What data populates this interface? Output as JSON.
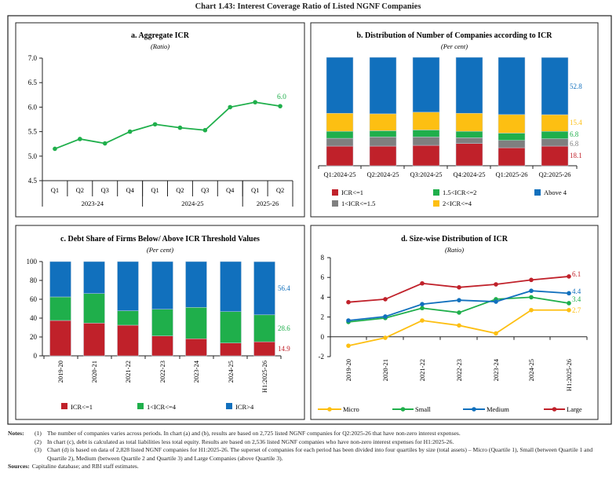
{
  "title": "Chart 1.43: Interest Coverage Ratio of Listed NGNF Companies",
  "colors": {
    "red": "#c0212a",
    "gray": "#7f7f7f",
    "green": "#1faf4b",
    "yellow": "#fdbf12",
    "blue": "#1170bd"
  },
  "chart_data": [
    {
      "id": "a",
      "type": "line",
      "title": "a. Aggregate ICR",
      "subtitle": "(Ratio)",
      "categories": [
        "Q1",
        "Q2",
        "Q3",
        "Q4",
        "Q1",
        "Q2",
        "Q3",
        "Q4",
        "Q1",
        "Q2"
      ],
      "groups": [
        {
          "label": "2023-24",
          "span": 4
        },
        {
          "label": "2024-25",
          "span": 4
        },
        {
          "label": "2025-26",
          "span": 2
        }
      ],
      "yticks": [
        "4.5",
        "5.0",
        "5.5",
        "6.0",
        "6.5",
        "7.0"
      ],
      "ylim": [
        4.5,
        7.0
      ],
      "series": [
        {
          "values": [
            5.15,
            5.35,
            5.26,
            5.5,
            5.65,
            5.58,
            5.53,
            6.0,
            6.1,
            6.02
          ],
          "color": "#1faf4b"
        }
      ],
      "end_label": "6.0"
    },
    {
      "id": "b",
      "type": "bar",
      "stacked": true,
      "title": "b. Distribution of Number of Companies according to ICR",
      "subtitle": "(Per cent)",
      "categories": [
        "Q1:2024-25",
        "Q2:2024-25",
        "Q3:2024-25",
        "Q4:2024-25",
        "Q1:2025-26",
        "Q2:2025-26"
      ],
      "series": [
        {
          "name": "ICR<=1",
          "color": "#c0212a",
          "values": [
            18.1,
            18.1,
            18.8,
            20.5,
            16.6,
            18.1
          ],
          "end_label": "18.1"
        },
        {
          "name": "1<ICR<=1.5",
          "color": "#7f7f7f",
          "values": [
            7.2,
            8.4,
            7.7,
            5.3,
            6.8,
            6.8
          ],
          "end_label": "6.8"
        },
        {
          "name": "1.5<ICR<=2",
          "color": "#1faf4b",
          "values": [
            6.5,
            5.8,
            6.5,
            6.0,
            6.7,
            6.8
          ],
          "end_label": "6.8"
        },
        {
          "name": "2<ICR<=4",
          "color": "#fdbf12",
          "values": [
            16.6,
            15.6,
            16.4,
            16.6,
            17.1,
            15.4
          ],
          "end_label": "15.4"
        },
        {
          "name": "Above 4",
          "color": "#1170bd",
          "values": [
            51.6,
            52.1,
            50.6,
            51.6,
            52.8,
            52.8
          ],
          "end_label": "52.8"
        }
      ],
      "legend_order": [
        0,
        2,
        4,
        1,
        3
      ],
      "ylim": [
        0,
        100
      ]
    },
    {
      "id": "c",
      "type": "bar",
      "stacked": true,
      "title": "c. Debt Share of Firms Below/ Above ICR Threshold Values",
      "subtitle": "(Per cent)",
      "categories": [
        "2019-20",
        "2020-21",
        "2021-22",
        "2022-23",
        "2023-24",
        "2024-25",
        "H1:2025-26"
      ],
      "yticks": [
        "0",
        "20",
        "40",
        "60",
        "80",
        "100"
      ],
      "ylim": [
        0,
        100
      ],
      "series": [
        {
          "name": "ICR<=1",
          "color": "#c0212a",
          "values": [
            37.5,
            34.7,
            32.5,
            21.1,
            18.1,
            13.6,
            14.9
          ],
          "end_label": "14.9"
        },
        {
          "name": "1<ICR<=4",
          "color": "#1faf4b",
          "values": [
            25.0,
            31.4,
            15.3,
            28.3,
            33.3,
            33.3,
            28.6
          ],
          "end_label": "28.6"
        },
        {
          "name": "ICR>4",
          "color": "#1170bd",
          "values": [
            37.5,
            33.9,
            52.2,
            50.6,
            48.6,
            53.1,
            56.4
          ],
          "end_label": "56.4"
        }
      ]
    },
    {
      "id": "d",
      "type": "line",
      "title": "d. Size-wise Distribution of ICR",
      "subtitle": "(Ratio)",
      "categories": [
        "2019-20",
        "2020-21",
        "2021-22",
        "2022-23",
        "2023-24",
        "2024-25",
        "H1:2025-26"
      ],
      "yticks": [
        "-2",
        "0",
        "2",
        "4",
        "6",
        "8"
      ],
      "ylim": [
        -2,
        8
      ],
      "series": [
        {
          "name": "Micro",
          "color": "#fdbf12",
          "values": [
            -0.9,
            -0.1,
            1.65,
            1.15,
            0.35,
            2.7,
            2.7
          ],
          "end_label": "2.7"
        },
        {
          "name": "Small",
          "color": "#1faf4b",
          "values": [
            1.5,
            1.9,
            2.9,
            2.45,
            3.8,
            4.0,
            3.4
          ],
          "end_label": "3.4"
        },
        {
          "name": "Medium",
          "color": "#1170bd",
          "values": [
            1.65,
            2.05,
            3.3,
            3.7,
            3.55,
            4.65,
            4.4
          ],
          "end_label": "4.4"
        },
        {
          "name": "Large",
          "color": "#c0212a",
          "values": [
            3.5,
            3.8,
            5.4,
            5.0,
            5.3,
            5.75,
            6.1
          ],
          "end_label": "6.1"
        }
      ]
    }
  ],
  "notes": {
    "label": "Notes:",
    "items": [
      {
        "num": "(1)",
        "text": "The number of companies varies across periods. In chart (a) and (b), results are based on 2,725 listed NGNF companies for Q2:2025-26 that have non-zero interest expenses."
      },
      {
        "num": "(2)",
        "text": "In chart (c), debt is calculated as total liabilities less total equity. Results are based on 2,536 listed NGNF companies who have non-zero interest expenses for H1:2025-26."
      },
      {
        "num": "(3)",
        "text": "Chart (d) is based on data of 2,828 listed NGNF companies for H1:2025-26. The superset of companies for each period has been divided into four quartiles by size (total assets) – Micro (Quartile 1), Small (between Quartile 1 and Quartile 2), Medium (between Quartile 2 and Quartile 3) and Large Companies (above Quartile 3)."
      }
    ],
    "sources_label": "Sources:",
    "sources": "Capitaline database; and RBI staff estimates."
  }
}
